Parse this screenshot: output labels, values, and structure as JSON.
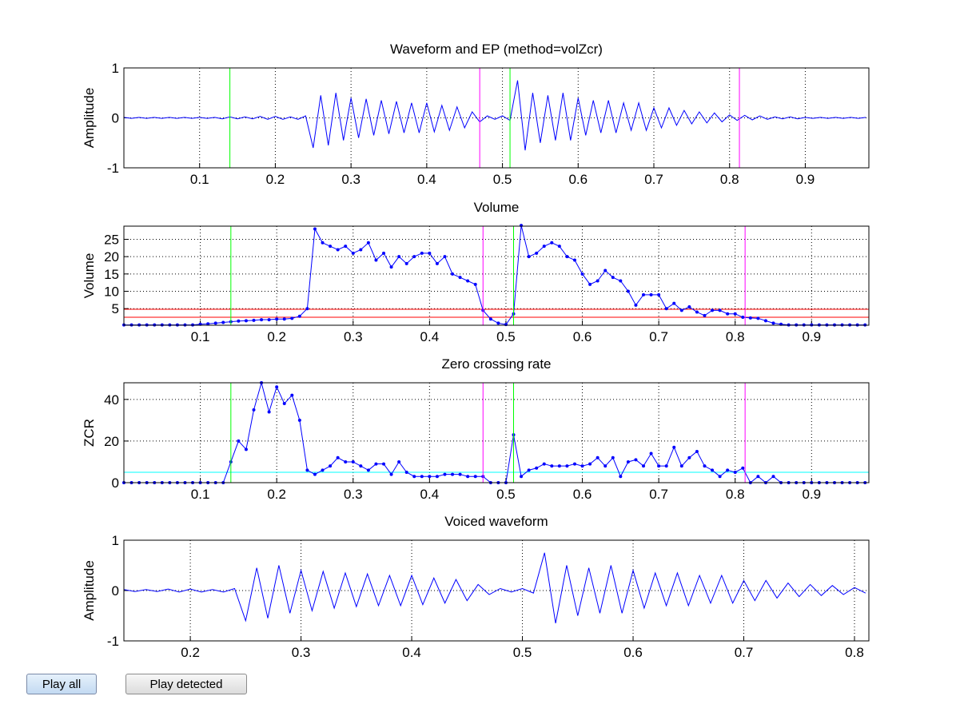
{
  "chart_data": [
    {
      "type": "line",
      "title": "Waveform and EP (method=volZcr)",
      "ylabel": "Amplitude",
      "x": [
        0,
        0.01,
        0.02,
        0.03,
        0.04,
        0.05,
        0.06,
        0.07,
        0.08,
        0.09,
        0.1,
        0.11,
        0.12,
        0.13,
        0.14,
        0.15,
        0.16,
        0.17,
        0.18,
        0.19,
        0.2,
        0.21,
        0.22,
        0.23,
        0.24,
        0.25,
        0.26,
        0.27,
        0.28,
        0.29,
        0.3,
        0.31,
        0.32,
        0.33,
        0.34,
        0.35,
        0.36,
        0.37,
        0.38,
        0.39,
        0.4,
        0.41,
        0.42,
        0.43,
        0.44,
        0.45,
        0.46,
        0.47,
        0.48,
        0.49,
        0.5,
        0.51,
        0.52,
        0.53,
        0.54,
        0.55,
        0.56,
        0.57,
        0.58,
        0.59,
        0.6,
        0.61,
        0.62,
        0.63,
        0.64,
        0.65,
        0.66,
        0.67,
        0.68,
        0.69,
        0.7,
        0.71,
        0.72,
        0.73,
        0.74,
        0.75,
        0.76,
        0.77,
        0.78,
        0.79,
        0.8,
        0.81,
        0.82,
        0.83,
        0.84,
        0.85,
        0.86,
        0.87,
        0.88,
        0.89,
        0.9,
        0.91,
        0.92,
        0.93,
        0.94,
        0.95,
        0.96,
        0.97,
        0.98
      ],
      "series": [
        {
          "color": "#0000ff",
          "values": [
            0.01,
            -0.01,
            0.01,
            -0.01,
            0.01,
            -0.01,
            0.01,
            -0.01,
            0.01,
            -0.01,
            0.01,
            -0.01,
            0.01,
            -0.02,
            0.02,
            -0.02,
            0.02,
            -0.02,
            0.03,
            -0.03,
            0.03,
            -0.03,
            0.02,
            -0.03,
            0.04,
            -0.6,
            0.45,
            -0.55,
            0.5,
            -0.45,
            0.4,
            -0.4,
            0.38,
            -0.35,
            0.35,
            -0.32,
            0.33,
            -0.3,
            0.3,
            -0.3,
            0.3,
            -0.28,
            0.25,
            -0.25,
            0.22,
            -0.2,
            0.12,
            -0.08,
            0.04,
            -0.03,
            0.04,
            -0.05,
            0.75,
            -0.65,
            0.5,
            -0.5,
            0.45,
            -0.45,
            0.5,
            -0.45,
            0.4,
            -0.35,
            0.35,
            -0.3,
            0.35,
            -0.3,
            0.3,
            -0.25,
            0.3,
            -0.25,
            0.2,
            -0.2,
            0.2,
            -0.15,
            0.15,
            -0.12,
            0.12,
            -0.1,
            0.1,
            -0.08,
            0.06,
            -0.05,
            0.05,
            -0.04,
            0.04,
            -0.03,
            0.02,
            -0.02,
            0.02,
            -0.02,
            0.01,
            -0.01,
            0.01,
            -0.01,
            0.01,
            -0.01,
            0.01,
            -0.01,
            0.01
          ]
        }
      ],
      "xlim": [
        0,
        0.984
      ],
      "xticks": [
        0.1,
        0.2,
        0.3,
        0.4,
        0.5,
        0.6,
        0.7,
        0.8,
        0.9
      ],
      "ylim": [
        -1,
        1
      ],
      "yticks": [
        -1,
        0,
        1
      ],
      "grid": true,
      "vlines": [
        {
          "x": 0.14,
          "color": "#00ff00"
        },
        {
          "x": 0.47,
          "color": "#ff00ff"
        },
        {
          "x": 0.51,
          "color": "#00ff00"
        },
        {
          "x": 0.813,
          "color": "#ff00ff"
        }
      ]
    },
    {
      "type": "line",
      "title": "Volume",
      "ylabel": "Volume",
      "marker": true,
      "x": [
        0,
        0.01,
        0.02,
        0.03,
        0.04,
        0.05,
        0.06,
        0.07,
        0.08,
        0.09,
        0.1,
        0.11,
        0.12,
        0.13,
        0.14,
        0.15,
        0.16,
        0.17,
        0.18,
        0.19,
        0.2,
        0.21,
        0.22,
        0.23,
        0.24,
        0.25,
        0.26,
        0.27,
        0.28,
        0.29,
        0.3,
        0.31,
        0.32,
        0.33,
        0.34,
        0.35,
        0.36,
        0.37,
        0.38,
        0.39,
        0.4,
        0.41,
        0.42,
        0.43,
        0.44,
        0.45,
        0.46,
        0.47,
        0.48,
        0.49,
        0.5,
        0.51,
        0.52,
        0.53,
        0.54,
        0.55,
        0.56,
        0.57,
        0.58,
        0.59,
        0.6,
        0.61,
        0.62,
        0.63,
        0.64,
        0.65,
        0.66,
        0.67,
        0.68,
        0.69,
        0.7,
        0.71,
        0.72,
        0.73,
        0.74,
        0.75,
        0.76,
        0.77,
        0.78,
        0.79,
        0.8,
        0.81,
        0.82,
        0.83,
        0.84,
        0.85,
        0.86,
        0.87,
        0.88,
        0.89,
        0.9,
        0.91,
        0.92,
        0.93,
        0.94,
        0.95,
        0.96,
        0.97
      ],
      "series": [
        {
          "color": "#0000ff",
          "values": [
            0.3,
            0.3,
            0.3,
            0.3,
            0.3,
            0.3,
            0.3,
            0.3,
            0.3,
            0.3,
            0.5,
            0.6,
            0.8,
            1.0,
            1.2,
            1.4,
            1.5,
            1.6,
            1.8,
            1.8,
            2.0,
            2.0,
            2.2,
            2.8,
            5.0,
            28,
            24,
            23,
            22,
            23,
            21,
            22,
            24,
            19,
            21,
            17,
            20,
            18,
            20,
            21,
            21,
            18,
            20,
            15,
            14,
            13,
            12,
            4.5,
            2.0,
            0.8,
            0.4,
            3.5,
            29,
            20,
            21,
            23,
            24,
            23,
            20,
            19,
            15,
            12,
            13,
            16,
            14,
            13,
            10,
            6,
            9,
            9,
            9,
            5,
            6.5,
            4.5,
            5.5,
            4,
            3,
            4.5,
            4.5,
            3.5,
            3.5,
            2.5,
            2.3,
            2.2,
            1.5,
            0.8,
            0.5,
            0.3,
            0.3,
            0.3,
            0.3,
            0.3,
            0.3,
            0.3,
            0.3,
            0.3,
            0.3,
            0.3
          ]
        }
      ],
      "xlim": [
        0,
        0.975
      ],
      "xticks": [
        0.1,
        0.2,
        0.3,
        0.4,
        0.5,
        0.6,
        0.7,
        0.8,
        0.9
      ],
      "ylim": [
        0.2,
        28.8
      ],
      "yticks": [
        5,
        10,
        15,
        20,
        25
      ],
      "grid": true,
      "hlines": [
        {
          "y": 2.5,
          "color": "#ff0000"
        },
        {
          "y": 4.8,
          "color": "#ff0000"
        }
      ],
      "vlines": [
        {
          "x": 0.14,
          "color": "#00ff00"
        },
        {
          "x": 0.47,
          "color": "#ff00ff"
        },
        {
          "x": 0.51,
          "color": "#00ff00"
        },
        {
          "x": 0.813,
          "color": "#ff00ff"
        }
      ]
    },
    {
      "type": "line",
      "title": "Zero crossing rate",
      "ylabel": "ZCR",
      "marker": true,
      "x": [
        0,
        0.01,
        0.02,
        0.03,
        0.04,
        0.05,
        0.06,
        0.07,
        0.08,
        0.09,
        0.1,
        0.11,
        0.12,
        0.13,
        0.14,
        0.15,
        0.16,
        0.17,
        0.18,
        0.19,
        0.2,
        0.21,
        0.22,
        0.23,
        0.24,
        0.25,
        0.26,
        0.27,
        0.28,
        0.29,
        0.3,
        0.31,
        0.32,
        0.33,
        0.34,
        0.35,
        0.36,
        0.37,
        0.38,
        0.39,
        0.4,
        0.41,
        0.42,
        0.43,
        0.44,
        0.45,
        0.46,
        0.47,
        0.48,
        0.49,
        0.5,
        0.51,
        0.52,
        0.53,
        0.54,
        0.55,
        0.56,
        0.57,
        0.58,
        0.59,
        0.6,
        0.61,
        0.62,
        0.63,
        0.64,
        0.65,
        0.66,
        0.67,
        0.68,
        0.69,
        0.7,
        0.71,
        0.72,
        0.73,
        0.74,
        0.75,
        0.76,
        0.77,
        0.78,
        0.79,
        0.8,
        0.81,
        0.82,
        0.83,
        0.84,
        0.85,
        0.86,
        0.87,
        0.88,
        0.89,
        0.9,
        0.91,
        0.92,
        0.93,
        0.94,
        0.95,
        0.96,
        0.97
      ],
      "series": [
        {
          "color": "#0000ff",
          "values": [
            0,
            0,
            0,
            0,
            0,
            0,
            0,
            0,
            0,
            0,
            0,
            0,
            0,
            0,
            10,
            20,
            16,
            35,
            48,
            34,
            46,
            38,
            42,
            30,
            6,
            4,
            6,
            8,
            12,
            10,
            10,
            8,
            6,
            9,
            9,
            4,
            10,
            5,
            3,
            3,
            3,
            3,
            4,
            4,
            4,
            3,
            3,
            3,
            0,
            0,
            0,
            23,
            3,
            6,
            7,
            9,
            8,
            8,
            8,
            9,
            8,
            9,
            12,
            8,
            12,
            3,
            10,
            11,
            8,
            14,
            8,
            8,
            17,
            8,
            12,
            15,
            8,
            6,
            3,
            6,
            5,
            7,
            0,
            3,
            0,
            3,
            0,
            0,
            0,
            0,
            0,
            0,
            0,
            0,
            0,
            0,
            0,
            0
          ]
        }
      ],
      "xlim": [
        0,
        0.975
      ],
      "xticks": [
        0.1,
        0.2,
        0.3,
        0.4,
        0.5,
        0.6,
        0.7,
        0.8,
        0.9
      ],
      "ylim": [
        0,
        48
      ],
      "yticks": [
        0,
        20,
        40
      ],
      "grid": true,
      "hlines": [
        {
          "y": 5,
          "color": "#00ffff"
        }
      ],
      "vlines": [
        {
          "x": 0.14,
          "color": "#00ff00"
        },
        {
          "x": 0.47,
          "color": "#ff00ff"
        },
        {
          "x": 0.51,
          "color": "#00ff00"
        },
        {
          "x": 0.813,
          "color": "#ff00ff"
        }
      ]
    },
    {
      "type": "line",
      "title": "Voiced waveform",
      "ylabel": "Amplitude",
      "x": [
        0.14,
        0.15,
        0.16,
        0.17,
        0.18,
        0.19,
        0.2,
        0.21,
        0.22,
        0.23,
        0.24,
        0.25,
        0.26,
        0.27,
        0.28,
        0.29,
        0.3,
        0.31,
        0.32,
        0.33,
        0.34,
        0.35,
        0.36,
        0.37,
        0.38,
        0.39,
        0.4,
        0.41,
        0.42,
        0.43,
        0.44,
        0.45,
        0.46,
        0.47,
        0.48,
        0.49,
        0.5,
        0.51,
        0.52,
        0.53,
        0.54,
        0.55,
        0.56,
        0.57,
        0.58,
        0.59,
        0.6,
        0.61,
        0.62,
        0.63,
        0.64,
        0.65,
        0.66,
        0.67,
        0.68,
        0.69,
        0.7,
        0.71,
        0.72,
        0.73,
        0.74,
        0.75,
        0.76,
        0.77,
        0.78,
        0.79,
        0.8,
        0.81
      ],
      "series": [
        {
          "color": "#0000ff",
          "values": [
            0.02,
            -0.02,
            0.02,
            -0.02,
            0.03,
            -0.03,
            0.03,
            -0.03,
            0.02,
            -0.03,
            0.04,
            -0.6,
            0.45,
            -0.55,
            0.5,
            -0.45,
            0.4,
            -0.4,
            0.38,
            -0.35,
            0.35,
            -0.32,
            0.33,
            -0.3,
            0.3,
            -0.3,
            0.3,
            -0.28,
            0.25,
            -0.25,
            0.22,
            -0.2,
            0.12,
            -0.08,
            0.04,
            -0.03,
            0.04,
            -0.05,
            0.75,
            -0.65,
            0.5,
            -0.5,
            0.45,
            -0.45,
            0.5,
            -0.45,
            0.4,
            -0.35,
            0.35,
            -0.3,
            0.35,
            -0.3,
            0.3,
            -0.25,
            0.3,
            -0.25,
            0.2,
            -0.2,
            0.2,
            -0.15,
            0.15,
            -0.12,
            0.12,
            -0.1,
            0.1,
            -0.08,
            0.06,
            -0.05
          ]
        }
      ],
      "xlim": [
        0.14,
        0.813
      ],
      "xticks": [
        0.2,
        0.3,
        0.4,
        0.5,
        0.6,
        0.7,
        0.8
      ],
      "ylim": [
        -1,
        1
      ],
      "yticks": [
        -1,
        0,
        1
      ],
      "grid": true
    }
  ],
  "buttons": [
    "Play all",
    "Play detected"
  ]
}
